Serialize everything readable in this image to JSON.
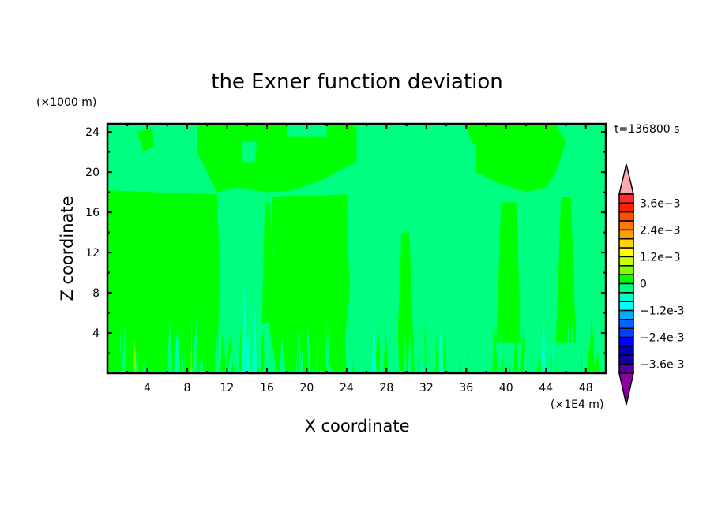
{
  "chart_data": {
    "type": "heatmap",
    "title": "the Exner function deviation",
    "xlabel": "X coordinate",
    "ylabel": "Z coordinate",
    "x_unit": "(×1E4 m)",
    "y_unit": "(×1000 m)",
    "time_label": "t=136800 s",
    "xlim": [
      0,
      50
    ],
    "ylim": [
      0,
      24.8
    ],
    "x_ticks": [
      "4",
      "8",
      "12",
      "16",
      "20",
      "24",
      "28",
      "32",
      "36",
      "40",
      "44",
      "48"
    ],
    "y_ticks": [
      "4",
      "8",
      "12",
      "16",
      "20",
      "24"
    ],
    "colorbar": {
      "levels_min": -0.004,
      "levels_max": 0.004,
      "step": 0.0004,
      "labels": [
        "3.6e-3",
        "2.4e-3",
        "1.2e-3",
        "0",
        "-1.2e-3",
        "-2.4e-3",
        "-3.6e-3"
      ],
      "label_values": [
        0.0036,
        0.0024,
        0.0012,
        0,
        -0.0012,
        -0.0024,
        -0.0036
      ],
      "colors_top_to_bottom": [
        "#ff2a2a",
        "#ff2000",
        "#ff5000",
        "#ff7800",
        "#ffa000",
        "#ffd200",
        "#ffff00",
        "#c8ff00",
        "#80ff00",
        "#00ff00",
        "#00ff80",
        "#00ffc8",
        "#00ffff",
        "#00aaff",
        "#0064ff",
        "#0040ff",
        "#0000ff",
        "#0000b4",
        "#1400a0",
        "#5000a0"
      ],
      "over_color": "#ffaaaa",
      "under_color": "#9000a0"
    },
    "dominant_levels": {
      "positive_small": "#00ff00",
      "negative_small": "#00ff80",
      "negative_medium": "#00ffc8"
    }
  }
}
